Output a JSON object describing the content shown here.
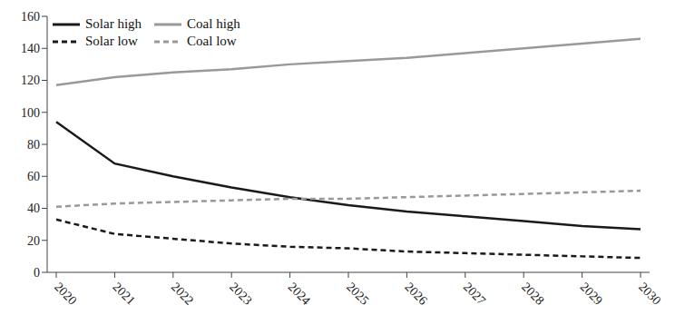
{
  "chart_data": {
    "type": "line",
    "categories": [
      "2020",
      "2021",
      "2022",
      "2023",
      "2024",
      "2025",
      "2026",
      "2027",
      "2028",
      "2029",
      "2030"
    ],
    "series": [
      {
        "name": "Solar high",
        "color": "#1a1a1a",
        "line_style": "solid",
        "values": [
          94,
          68,
          60,
          53,
          47,
          42,
          38,
          35,
          32,
          29,
          27
        ]
      },
      {
        "name": "Solar low",
        "color": "#1a1a1a",
        "line_style": "dashed",
        "values": [
          33,
          24,
          21,
          18,
          16,
          15,
          13,
          12,
          11,
          10,
          9
        ]
      },
      {
        "name": "Coal high",
        "color": "#999999",
        "line_style": "solid",
        "values": [
          117,
          122,
          125,
          127,
          130,
          132,
          134,
          137,
          140,
          143,
          146
        ]
      },
      {
        "name": "Coal low",
        "color": "#999999",
        "line_style": "dashed",
        "values": [
          41,
          43,
          44,
          45,
          46,
          46,
          47,
          48,
          49,
          50,
          51
        ]
      }
    ],
    "ylim": [
      0,
      160
    ],
    "yticks": [
      0,
      20,
      40,
      60,
      80,
      100,
      120,
      140,
      160
    ],
    "grid": false,
    "legend": "upper left"
  }
}
